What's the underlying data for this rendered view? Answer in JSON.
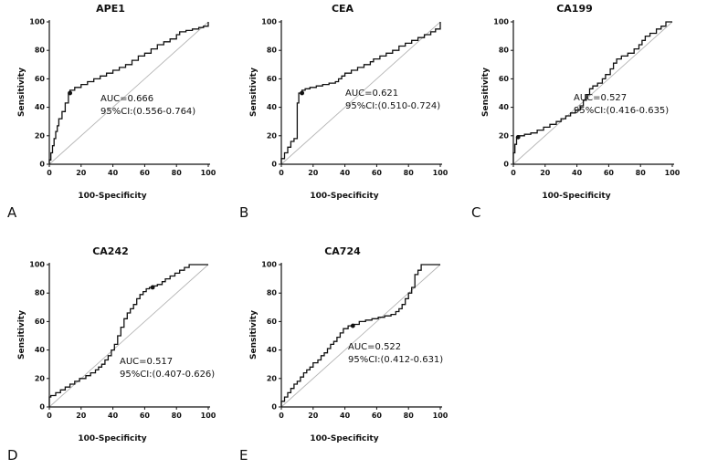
{
  "figure": {
    "background": "#ffffff",
    "curve_color": "#111111",
    "diagonal_color": "#b5b5b5"
  },
  "chart_data": [
    {
      "type": "line",
      "panel_label": "A",
      "title": "APE1",
      "xlabel": "100-Specificity",
      "ylabel": "Sensitivity",
      "xlim": [
        0,
        100
      ],
      "ylim": [
        0,
        100
      ],
      "ticks": [
        0,
        20,
        40,
        60,
        80,
        100
      ],
      "auc_label": "AUC=0.666",
      "ci_label": "95%CI:(0.556-0.764)",
      "annotation_xy": [
        32,
        46
      ],
      "marker": [
        13,
        50
      ],
      "roc_points": [
        [
          0,
          0
        ],
        [
          1,
          3
        ],
        [
          2,
          8
        ],
        [
          3,
          13
        ],
        [
          4,
          18
        ],
        [
          5,
          23
        ],
        [
          6,
          27
        ],
        [
          8,
          32
        ],
        [
          10,
          37
        ],
        [
          12,
          43
        ],
        [
          13,
          50
        ],
        [
          16,
          52
        ],
        [
          20,
          54
        ],
        [
          24,
          56
        ],
        [
          28,
          58
        ],
        [
          32,
          60
        ],
        [
          36,
          62
        ],
        [
          40,
          64
        ],
        [
          44,
          66
        ],
        [
          48,
          68
        ],
        [
          52,
          70
        ],
        [
          56,
          73
        ],
        [
          60,
          76
        ],
        [
          64,
          78
        ],
        [
          68,
          81
        ],
        [
          72,
          84
        ],
        [
          76,
          86
        ],
        [
          80,
          88
        ],
        [
          82,
          91
        ],
        [
          86,
          93
        ],
        [
          90,
          94
        ],
        [
          94,
          95
        ],
        [
          97,
          96
        ],
        [
          100,
          97
        ],
        [
          100,
          100
        ]
      ]
    },
    {
      "type": "line",
      "panel_label": "B",
      "title": "CEA",
      "xlabel": "100-Specificity",
      "ylabel": "Sensitivity",
      "xlim": [
        0,
        100
      ],
      "ylim": [
        0,
        100
      ],
      "ticks": [
        0,
        20,
        40,
        60,
        80,
        100
      ],
      "auc_label": "AUC=0.621",
      "ci_label": "95%CI:(0.510-0.724)",
      "annotation_xy": [
        40,
        50
      ],
      "marker": [
        13,
        50
      ],
      "roc_points": [
        [
          0,
          0
        ],
        [
          2,
          4
        ],
        [
          4,
          8
        ],
        [
          6,
          12
        ],
        [
          8,
          16
        ],
        [
          10,
          18
        ],
        [
          11,
          43
        ],
        [
          13,
          50
        ],
        [
          15,
          52
        ],
        [
          18,
          53
        ],
        [
          22,
          54
        ],
        [
          26,
          55
        ],
        [
          30,
          56
        ],
        [
          34,
          57
        ],
        [
          36,
          58
        ],
        [
          38,
          60
        ],
        [
          40,
          62
        ],
        [
          44,
          64
        ],
        [
          48,
          66
        ],
        [
          52,
          68
        ],
        [
          56,
          70
        ],
        [
          58,
          72
        ],
        [
          62,
          74
        ],
        [
          66,
          76
        ],
        [
          70,
          78
        ],
        [
          74,
          80
        ],
        [
          78,
          83
        ],
        [
          82,
          85
        ],
        [
          86,
          87
        ],
        [
          90,
          89
        ],
        [
          94,
          91
        ],
        [
          97,
          93
        ],
        [
          100,
          95
        ],
        [
          100,
          100
        ]
      ]
    },
    {
      "type": "line",
      "panel_label": "C",
      "title": "CA199",
      "xlabel": "100-Specificity",
      "ylabel": "Sensitivity",
      "xlim": [
        0,
        100
      ],
      "ylim": [
        0,
        100
      ],
      "ticks": [
        0,
        20,
        40,
        60,
        80,
        100
      ],
      "auc_label": "AUC=0.527",
      "ci_label": "95%CI:(0.416-0.635)",
      "annotation_xy": [
        38,
        47
      ],
      "marker": [
        3,
        19
      ],
      "roc_points": [
        [
          0,
          0
        ],
        [
          1,
          8
        ],
        [
          2,
          14
        ],
        [
          3,
          19
        ],
        [
          7,
          20
        ],
        [
          11,
          21
        ],
        [
          15,
          22
        ],
        [
          19,
          24
        ],
        [
          23,
          26
        ],
        [
          27,
          28
        ],
        [
          30,
          30
        ],
        [
          33,
          32
        ],
        [
          36,
          34
        ],
        [
          39,
          36
        ],
        [
          42,
          38
        ],
        [
          44,
          41
        ],
        [
          46,
          45
        ],
        [
          48,
          49
        ],
        [
          50,
          53
        ],
        [
          53,
          55
        ],
        [
          56,
          57
        ],
        [
          58,
          60
        ],
        [
          61,
          63
        ],
        [
          63,
          67
        ],
        [
          65,
          71
        ],
        [
          68,
          74
        ],
        [
          72,
          76
        ],
        [
          76,
          78
        ],
        [
          79,
          81
        ],
        [
          81,
          84
        ],
        [
          83,
          87
        ],
        [
          86,
          90
        ],
        [
          90,
          92
        ],
        [
          93,
          95
        ],
        [
          96,
          97
        ],
        [
          100,
          100
        ]
      ]
    },
    {
      "type": "line",
      "panel_label": "D",
      "title": "CA242",
      "xlabel": "100-Specificity",
      "ylabel": "Sensitivity",
      "xlim": [
        0,
        100
      ],
      "ylim": [
        0,
        100
      ],
      "ticks": [
        0,
        20,
        40,
        60,
        80,
        100
      ],
      "auc_label": "AUC=0.517",
      "ci_label": "95%CI:(0.407-0.626)",
      "annotation_xy": [
        44,
        32
      ],
      "marker": [
        65,
        84
      ],
      "roc_points": [
        [
          0,
          0
        ],
        [
          1,
          7
        ],
        [
          4,
          8
        ],
        [
          7,
          10
        ],
        [
          10,
          12
        ],
        [
          13,
          14
        ],
        [
          16,
          16
        ],
        [
          19,
          18
        ],
        [
          23,
          20
        ],
        [
          26,
          22
        ],
        [
          29,
          24
        ],
        [
          31,
          26
        ],
        [
          33,
          28
        ],
        [
          35,
          30
        ],
        [
          37,
          33
        ],
        [
          39,
          36
        ],
        [
          41,
          40
        ],
        [
          43,
          44
        ],
        [
          45,
          50
        ],
        [
          47,
          56
        ],
        [
          49,
          62
        ],
        [
          51,
          66
        ],
        [
          53,
          69
        ],
        [
          55,
          72
        ],
        [
          57,
          76
        ],
        [
          59,
          79
        ],
        [
          61,
          81
        ],
        [
          63,
          83
        ],
        [
          65,
          84
        ],
        [
          68,
          85
        ],
        [
          71,
          86
        ],
        [
          73,
          88
        ],
        [
          76,
          90
        ],
        [
          79,
          92
        ],
        [
          82,
          94
        ],
        [
          85,
          96
        ],
        [
          88,
          98
        ],
        [
          91,
          100
        ],
        [
          100,
          100
        ]
      ]
    },
    {
      "type": "line",
      "panel_label": "E",
      "title": "CA724",
      "xlabel": "100-Specificity",
      "ylabel": "Sensitivity",
      "xlim": [
        0,
        100
      ],
      "ylim": [
        0,
        100
      ],
      "ticks": [
        0,
        20,
        40,
        60,
        80,
        100
      ],
      "auc_label": "AUC=0.522",
      "ci_label": "95%CI:(0.412-0.631)",
      "annotation_xy": [
        42,
        42
      ],
      "marker": [
        45,
        57
      ],
      "roc_points": [
        [
          0,
          0
        ],
        [
          2,
          4
        ],
        [
          4,
          7
        ],
        [
          6,
          10
        ],
        [
          8,
          13
        ],
        [
          10,
          16
        ],
        [
          12,
          18
        ],
        [
          14,
          21
        ],
        [
          16,
          24
        ],
        [
          18,
          26
        ],
        [
          20,
          28
        ],
        [
          23,
          31
        ],
        [
          25,
          33
        ],
        [
          27,
          36
        ],
        [
          29,
          38
        ],
        [
          31,
          41
        ],
        [
          33,
          44
        ],
        [
          35,
          46
        ],
        [
          37,
          49
        ],
        [
          39,
          52
        ],
        [
          42,
          55
        ],
        [
          45,
          57
        ],
        [
          49,
          58
        ],
        [
          53,
          60
        ],
        [
          57,
          61
        ],
        [
          61,
          62
        ],
        [
          65,
          63
        ],
        [
          69,
          64
        ],
        [
          72,
          65
        ],
        [
          74,
          67
        ],
        [
          76,
          69
        ],
        [
          78,
          72
        ],
        [
          80,
          76
        ],
        [
          82,
          80
        ],
        [
          84,
          84
        ],
        [
          84,
          90
        ],
        [
          86,
          93
        ],
        [
          88,
          96
        ],
        [
          90,
          100
        ],
        [
          100,
          100
        ]
      ]
    }
  ]
}
